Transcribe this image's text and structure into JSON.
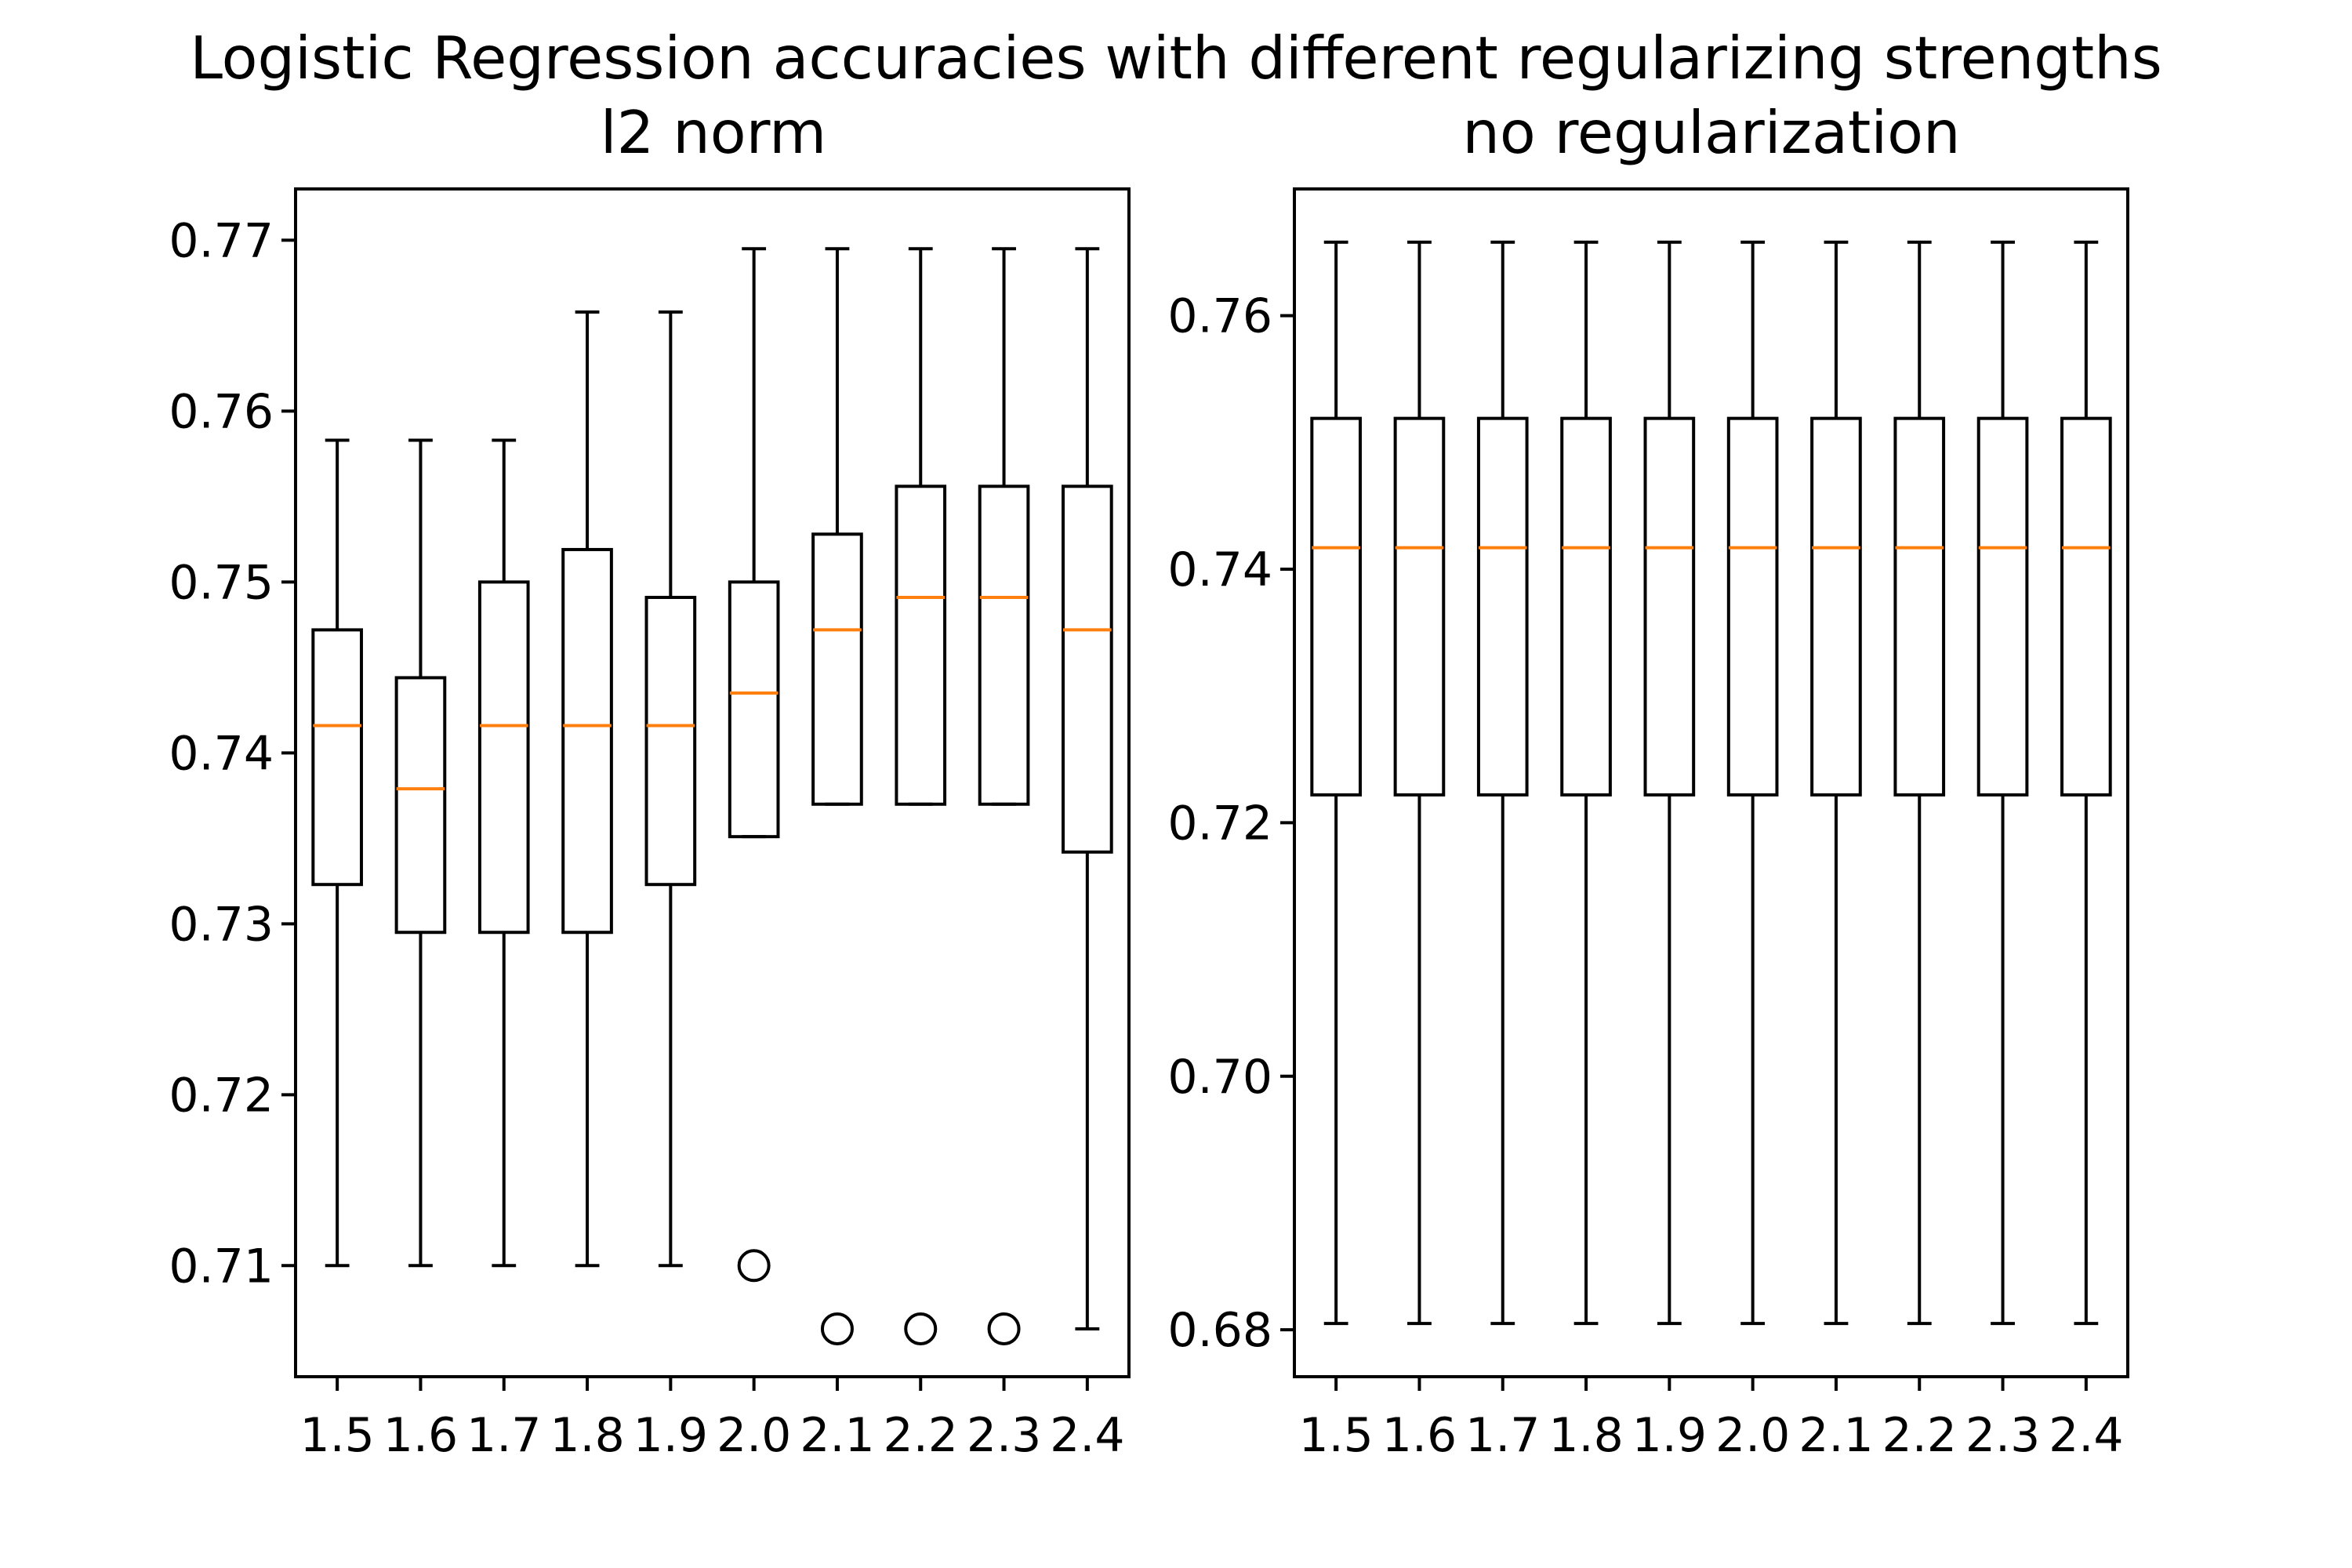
{
  "figure": {
    "title": "Logistic Regression accuracies with different regularizing strengths"
  },
  "colors": {
    "box_edge": "#000000",
    "median": "#ff7f0e",
    "background": "#ffffff"
  },
  "chart_data": [
    {
      "type": "box",
      "title": "l2 norm",
      "xlabel": "",
      "ylabel": "",
      "categories": [
        "1.5",
        "1.6",
        "1.7",
        "1.8",
        "1.9",
        "2.0",
        "2.1",
        "2.2",
        "2.3",
        "2.4"
      ],
      "ylim": [
        0.7035,
        0.773
      ],
      "yticks": [
        0.71,
        0.72,
        0.73,
        0.74,
        0.75,
        0.76,
        0.77
      ],
      "ytick_labels": [
        "0.71",
        "0.72",
        "0.73",
        "0.74",
        "0.75",
        "0.76",
        "0.77"
      ],
      "boxes": [
        {
          "whisker_low": 0.71,
          "q1": 0.7323,
          "median": 0.7416,
          "q3": 0.7472,
          "whisker_high": 0.7583,
          "fliers": []
        },
        {
          "whisker_low": 0.71,
          "q1": 0.7295,
          "median": 0.7379,
          "q3": 0.7444,
          "whisker_high": 0.7583,
          "fliers": []
        },
        {
          "whisker_low": 0.71,
          "q1": 0.7295,
          "median": 0.7416,
          "q3": 0.75,
          "whisker_high": 0.7583,
          "fliers": []
        },
        {
          "whisker_low": 0.71,
          "q1": 0.7295,
          "median": 0.7416,
          "q3": 0.7519,
          "whisker_high": 0.7658,
          "fliers": []
        },
        {
          "whisker_low": 0.71,
          "q1": 0.7323,
          "median": 0.7416,
          "q3": 0.7491,
          "whisker_high": 0.7658,
          "fliers": []
        },
        {
          "whisker_low": 0.7351,
          "q1": 0.7351,
          "median": 0.7435,
          "q3": 0.75,
          "whisker_high": 0.7695,
          "fliers": [
            0.71
          ]
        },
        {
          "whisker_low": 0.737,
          "q1": 0.737,
          "median": 0.7472,
          "q3": 0.7528,
          "whisker_high": 0.7695,
          "fliers": [
            0.7063
          ]
        },
        {
          "whisker_low": 0.737,
          "q1": 0.737,
          "median": 0.7491,
          "q3": 0.7556,
          "whisker_high": 0.7695,
          "fliers": [
            0.7063
          ]
        },
        {
          "whisker_low": 0.737,
          "q1": 0.737,
          "median": 0.7491,
          "q3": 0.7556,
          "whisker_high": 0.7695,
          "fliers": [
            0.7063
          ]
        },
        {
          "whisker_low": 0.7063,
          "q1": 0.7342,
          "median": 0.7472,
          "q3": 0.7556,
          "whisker_high": 0.7695,
          "fliers": []
        }
      ]
    },
    {
      "type": "box",
      "title": "no regularization",
      "xlabel": "",
      "ylabel": "",
      "categories": [
        "1.5",
        "1.6",
        "1.7",
        "1.8",
        "1.9",
        "2.0",
        "2.1",
        "2.2",
        "2.3",
        "2.4"
      ],
      "ylim": [
        0.6763,
        0.77
      ],
      "yticks": [
        0.68,
        0.7,
        0.72,
        0.74,
        0.76
      ],
      "ytick_labels": [
        "0.68",
        "0.70",
        "0.72",
        "0.74",
        "0.76"
      ],
      "boxes": [
        {
          "whisker_low": 0.6805,
          "q1": 0.7222,
          "median": 0.7417,
          "q3": 0.7519,
          "whisker_high": 0.7658,
          "fliers": []
        },
        {
          "whisker_low": 0.6805,
          "q1": 0.7222,
          "median": 0.7417,
          "q3": 0.7519,
          "whisker_high": 0.7658,
          "fliers": []
        },
        {
          "whisker_low": 0.6805,
          "q1": 0.7222,
          "median": 0.7417,
          "q3": 0.7519,
          "whisker_high": 0.7658,
          "fliers": []
        },
        {
          "whisker_low": 0.6805,
          "q1": 0.7222,
          "median": 0.7417,
          "q3": 0.7519,
          "whisker_high": 0.7658,
          "fliers": []
        },
        {
          "whisker_low": 0.6805,
          "q1": 0.7222,
          "median": 0.7417,
          "q3": 0.7519,
          "whisker_high": 0.7658,
          "fliers": []
        },
        {
          "whisker_low": 0.6805,
          "q1": 0.7222,
          "median": 0.7417,
          "q3": 0.7519,
          "whisker_high": 0.7658,
          "fliers": []
        },
        {
          "whisker_low": 0.6805,
          "q1": 0.7222,
          "median": 0.7417,
          "q3": 0.7519,
          "whisker_high": 0.7658,
          "fliers": []
        },
        {
          "whisker_low": 0.6805,
          "q1": 0.7222,
          "median": 0.7417,
          "q3": 0.7519,
          "whisker_high": 0.7658,
          "fliers": []
        },
        {
          "whisker_low": 0.6805,
          "q1": 0.7222,
          "median": 0.7417,
          "q3": 0.7519,
          "whisker_high": 0.7658,
          "fliers": []
        },
        {
          "whisker_low": 0.6805,
          "q1": 0.7222,
          "median": 0.7417,
          "q3": 0.7519,
          "whisker_high": 0.7658,
          "fliers": []
        }
      ]
    }
  ]
}
